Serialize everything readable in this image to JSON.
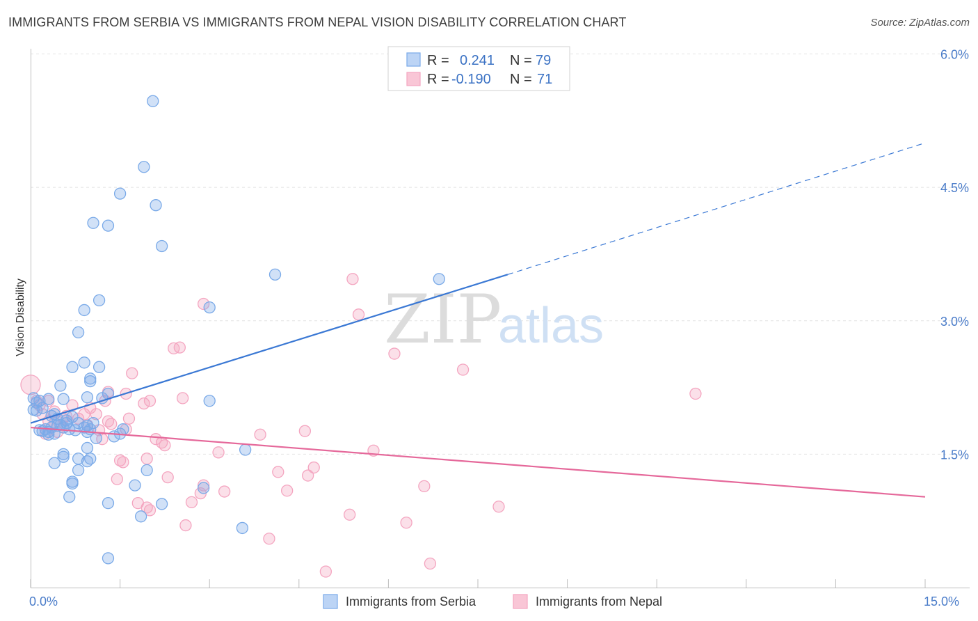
{
  "chart_data": {
    "type": "scatter",
    "title": "IMMIGRANTS FROM SERBIA VS IMMIGRANTS FROM NEPAL VISION DISABILITY CORRELATION CHART",
    "source": "Source: ZipAtlas.com",
    "xlabel": "",
    "ylabel": "Vision Disability",
    "xlim": [
      0,
      15
    ],
    "ylim": [
      0,
      6.2
    ],
    "x_tick_labels": [
      {
        "value": 0,
        "label": "0.0%"
      },
      {
        "value": 15,
        "label": "15.0%"
      }
    ],
    "y_tick_labels": [
      {
        "value": 1.5,
        "label": "1.5%"
      },
      {
        "value": 3.0,
        "label": "3.0%"
      },
      {
        "value": 4.5,
        "label": "4.5%"
      },
      {
        "value": 6.0,
        "label": "6.0%"
      }
    ],
    "grid": true,
    "watermark": {
      "zip": "ZIP",
      "atlas": "atlas"
    },
    "legend": {
      "r_label": "R =",
      "n_label": "N =",
      "entries": [
        {
          "r": "0.241",
          "n": "79"
        },
        {
          "r": "-0.190",
          "n": "71"
        }
      ]
    },
    "series": [
      {
        "name": "Immigrants from Serbia",
        "color": "#7aaae8",
        "line_color": "#3a78d4",
        "trend": {
          "x0": 0,
          "y0": 1.85,
          "x1": 8.0,
          "y1": 3.52,
          "dash_x1": 15.0,
          "dash_y1": 5.0
        },
        "points": [
          [
            2.05,
            5.47
          ],
          [
            1.9,
            4.73
          ],
          [
            1.5,
            4.43
          ],
          [
            2.1,
            4.3
          ],
          [
            1.05,
            4.1
          ],
          [
            1.3,
            4.07
          ],
          [
            2.2,
            3.84
          ],
          [
            4.1,
            3.52
          ],
          [
            6.85,
            3.47
          ],
          [
            1.15,
            3.23
          ],
          [
            0.9,
            3.12
          ],
          [
            3.0,
            3.15
          ],
          [
            0.8,
            2.87
          ],
          [
            0.9,
            2.53
          ],
          [
            0.7,
            2.48
          ],
          [
            1.15,
            2.48
          ],
          [
            1.0,
            2.35
          ],
          [
            1.0,
            2.32
          ],
          [
            0.5,
            2.27
          ],
          [
            0.55,
            2.12
          ],
          [
            0.95,
            2.14
          ],
          [
            1.3,
            2.18
          ],
          [
            0.05,
            2.13
          ],
          [
            0.1,
            2.08
          ],
          [
            0.15,
            2.1
          ],
          [
            0.3,
            2.12
          ],
          [
            0.05,
            2.0
          ],
          [
            0.2,
            2.02
          ],
          [
            3.0,
            2.1
          ],
          [
            0.35,
            1.93
          ],
          [
            0.4,
            1.95
          ],
          [
            0.45,
            1.9
          ],
          [
            0.6,
            1.88
          ],
          [
            0.7,
            1.92
          ],
          [
            0.8,
            1.85
          ],
          [
            0.5,
            1.83
          ],
          [
            0.35,
            1.8
          ],
          [
            0.55,
            1.8
          ],
          [
            0.65,
            1.78
          ],
          [
            0.25,
            1.78
          ],
          [
            0.3,
            1.72
          ],
          [
            0.4,
            1.73
          ],
          [
            0.15,
            1.77
          ],
          [
            0.95,
            1.82
          ],
          [
            1.05,
            1.85
          ],
          [
            0.95,
            1.75
          ],
          [
            1.55,
            1.78
          ],
          [
            1.5,
            1.73
          ],
          [
            1.4,
            1.7
          ],
          [
            1.1,
            1.68
          ],
          [
            0.75,
            1.77
          ],
          [
            0.3,
            1.75
          ],
          [
            0.9,
            1.8
          ],
          [
            1.0,
            1.78
          ],
          [
            0.95,
            1.57
          ],
          [
            0.55,
            1.5
          ],
          [
            0.55,
            1.47
          ],
          [
            0.8,
            1.45
          ],
          [
            1.0,
            1.45
          ],
          [
            0.95,
            1.42
          ],
          [
            0.4,
            1.4
          ],
          [
            0.8,
            1.32
          ],
          [
            1.95,
            1.32
          ],
          [
            3.6,
            1.55
          ],
          [
            0.7,
            1.17
          ],
          [
            0.7,
            1.19
          ],
          [
            1.75,
            1.15
          ],
          [
            2.9,
            1.12
          ],
          [
            0.65,
            1.02
          ],
          [
            1.3,
            0.95
          ],
          [
            2.2,
            0.94
          ],
          [
            1.85,
            0.8
          ],
          [
            3.55,
            0.67
          ],
          [
            1.3,
            0.33
          ],
          [
            0.1,
            1.99
          ],
          [
            0.2,
            1.76
          ],
          [
            0.45,
            1.82
          ],
          [
            0.6,
            1.85
          ],
          [
            1.2,
            2.13
          ]
        ]
      },
      {
        "name": "Immigrants from Nepal",
        "color": "#f4a5c0",
        "line_color": "#e5689a",
        "trend": {
          "x0": 0,
          "y0": 1.8,
          "x1": 15.0,
          "y1": 1.02
        },
        "points": [
          [
            0.0,
            2.28
          ],
          [
            5.4,
            3.47
          ],
          [
            5.5,
            3.07
          ],
          [
            2.9,
            3.19
          ],
          [
            2.4,
            2.69
          ],
          [
            2.5,
            2.7
          ],
          [
            6.1,
            2.63
          ],
          [
            7.25,
            2.45
          ],
          [
            1.7,
            2.41
          ],
          [
            11.15,
            2.18
          ],
          [
            1.6,
            2.18
          ],
          [
            2.55,
            2.13
          ],
          [
            1.3,
            2.2
          ],
          [
            1.25,
            2.1
          ],
          [
            2.0,
            2.1
          ],
          [
            1.9,
            2.07
          ],
          [
            0.1,
            2.1
          ],
          [
            0.15,
            2.05
          ],
          [
            0.3,
            2.1
          ],
          [
            0.7,
            2.05
          ],
          [
            1.0,
            2.02
          ],
          [
            1.1,
            1.95
          ],
          [
            0.9,
            1.95
          ],
          [
            0.4,
            1.98
          ],
          [
            0.2,
            1.95
          ],
          [
            0.55,
            1.9
          ],
          [
            0.8,
            1.9
          ],
          [
            1.65,
            1.9
          ],
          [
            0.3,
            1.87
          ],
          [
            0.4,
            1.85
          ],
          [
            0.95,
            1.83
          ],
          [
            1.3,
            1.87
          ],
          [
            1.35,
            1.84
          ],
          [
            0.55,
            1.8
          ],
          [
            0.45,
            1.75
          ],
          [
            1.6,
            1.78
          ],
          [
            3.85,
            1.72
          ],
          [
            4.6,
            1.76
          ],
          [
            1.2,
            1.67
          ],
          [
            2.1,
            1.67
          ],
          [
            2.2,
            1.63
          ],
          [
            2.25,
            1.6
          ],
          [
            3.15,
            1.52
          ],
          [
            5.75,
            1.54
          ],
          [
            1.5,
            1.43
          ],
          [
            1.55,
            1.41
          ],
          [
            1.95,
            1.45
          ],
          [
            4.75,
            1.35
          ],
          [
            4.65,
            1.26
          ],
          [
            4.15,
            1.3
          ],
          [
            2.3,
            1.24
          ],
          [
            1.45,
            1.22
          ],
          [
            2.9,
            1.15
          ],
          [
            6.6,
            1.14
          ],
          [
            4.3,
            1.09
          ],
          [
            2.85,
            1.06
          ],
          [
            3.25,
            1.08
          ],
          [
            2.7,
            0.96
          ],
          [
            1.8,
            0.95
          ],
          [
            1.95,
            0.9
          ],
          [
            2.0,
            0.87
          ],
          [
            7.85,
            0.91
          ],
          [
            5.35,
            0.82
          ],
          [
            6.3,
            0.73
          ],
          [
            2.6,
            0.7
          ],
          [
            4.0,
            0.55
          ],
          [
            6.7,
            0.27
          ],
          [
            4.95,
            0.18
          ],
          [
            0.25,
            1.73
          ],
          [
            1.15,
            1.77
          ],
          [
            0.6,
            1.93
          ]
        ]
      }
    ]
  }
}
